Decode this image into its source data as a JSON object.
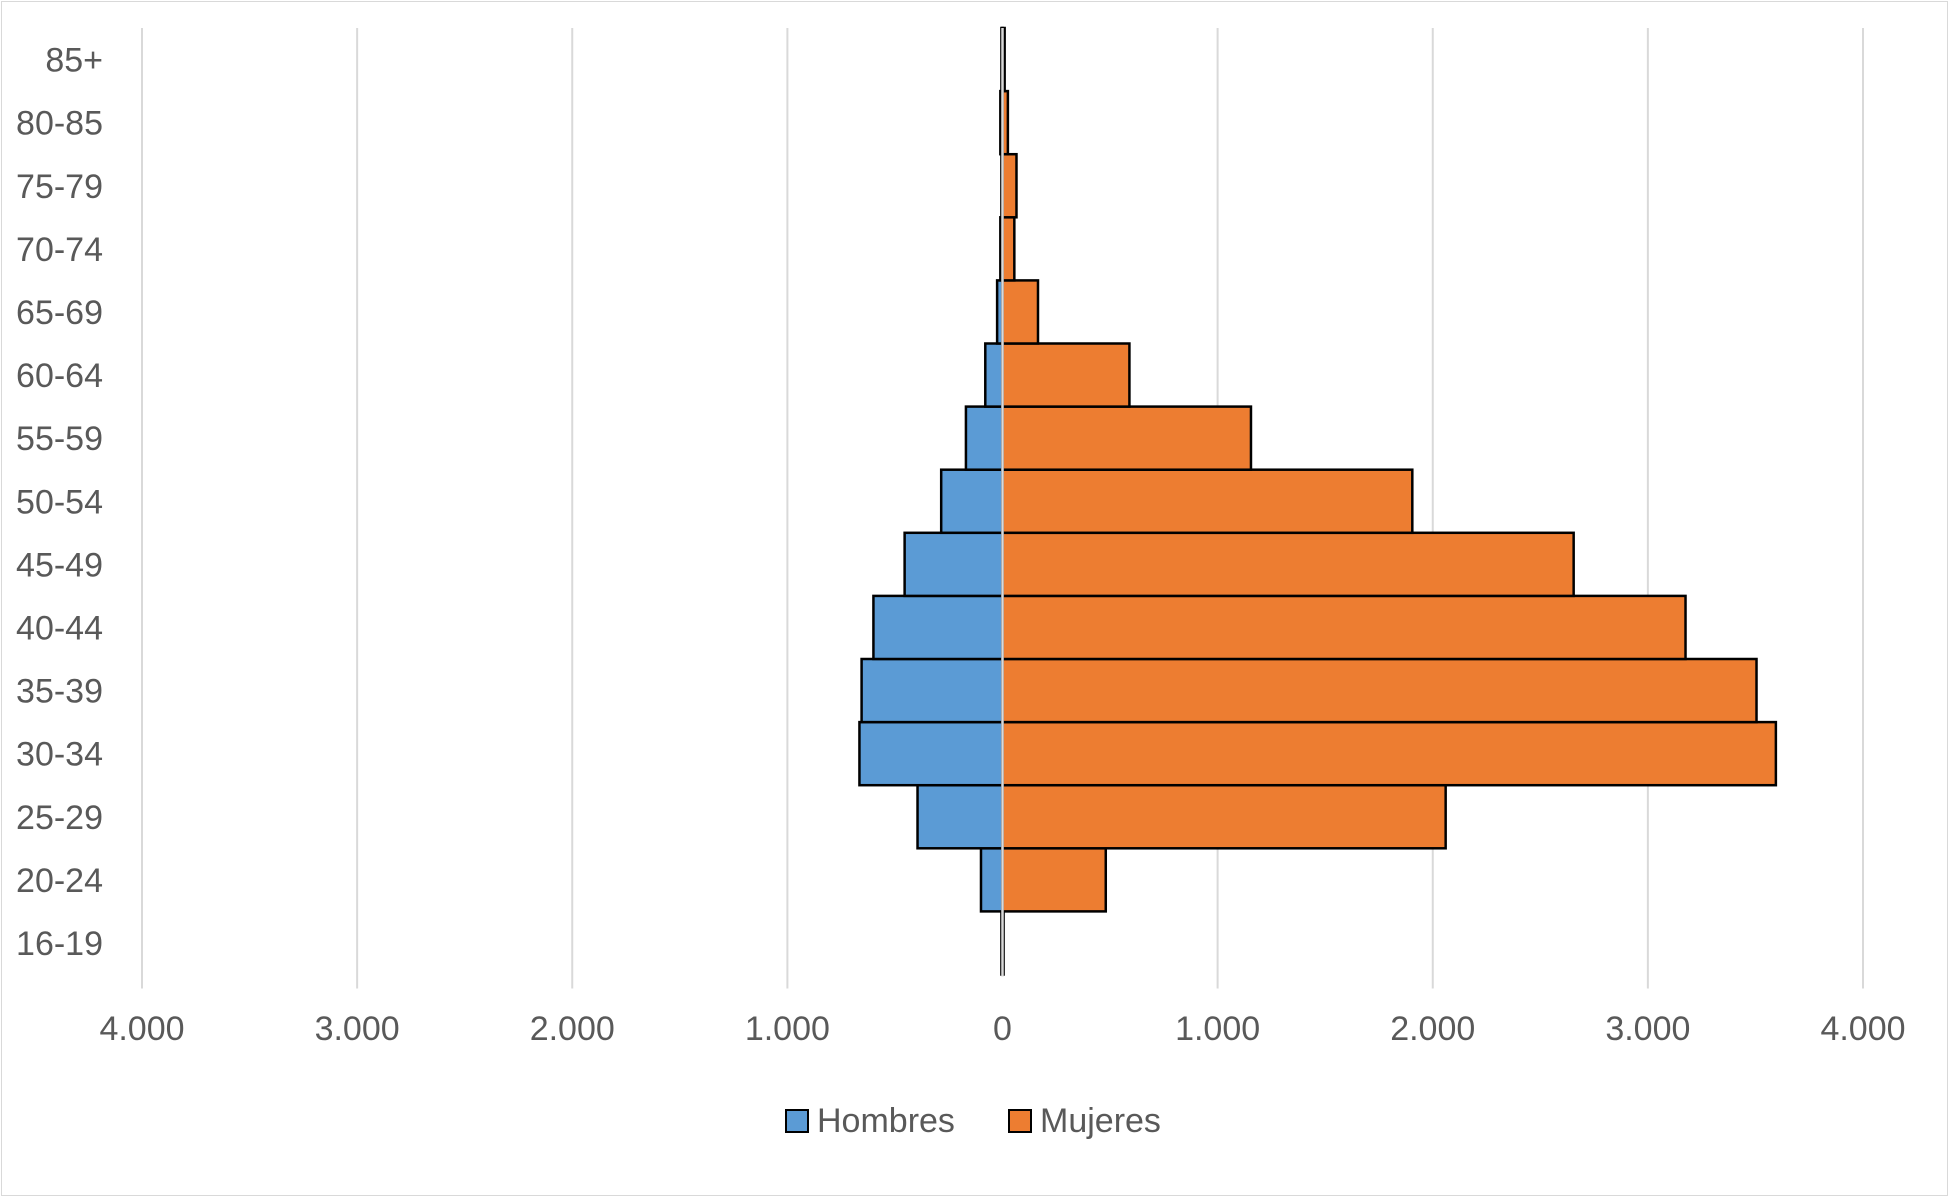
{
  "chart_data": {
    "type": "bar",
    "orientation": "horizontal",
    "layout": "population-pyramid",
    "categories": [
      "16-19",
      "20-24",
      "25-29",
      "30-34",
      "35-39",
      "40-44",
      "45-49",
      "50-54",
      "55-59",
      "60-64",
      "65-69",
      "70-74",
      "75-79",
      "80-85",
      "85+"
    ],
    "series": [
      {
        "name": "Hombres",
        "color": "#5b9bd5",
        "direction": "left",
        "values": [
          5,
          100,
          395,
          665,
          655,
          600,
          455,
          285,
          170,
          80,
          25,
          10,
          5,
          10,
          5
        ]
      },
      {
        "name": "Mujeres",
        "color": "#ed7d31",
        "direction": "right",
        "values": [
          5,
          480,
          2060,
          3595,
          3505,
          3175,
          2655,
          1905,
          1155,
          590,
          165,
          55,
          65,
          25,
          10
        ]
      }
    ],
    "xlim": [
      -4000,
      4000
    ],
    "x_ticks": [
      -4000,
      -3000,
      -2000,
      -1000,
      0,
      1000,
      2000,
      3000,
      4000
    ],
    "x_tick_labels": [
      "4.000",
      "3.000",
      "2.000",
      "1.000",
      "0",
      "1.000",
      "2.000",
      "3.000",
      "4.000"
    ],
    "grid": "vertical",
    "legend": "bottom",
    "title": "",
    "xlabel": "",
    "ylabel": ""
  }
}
